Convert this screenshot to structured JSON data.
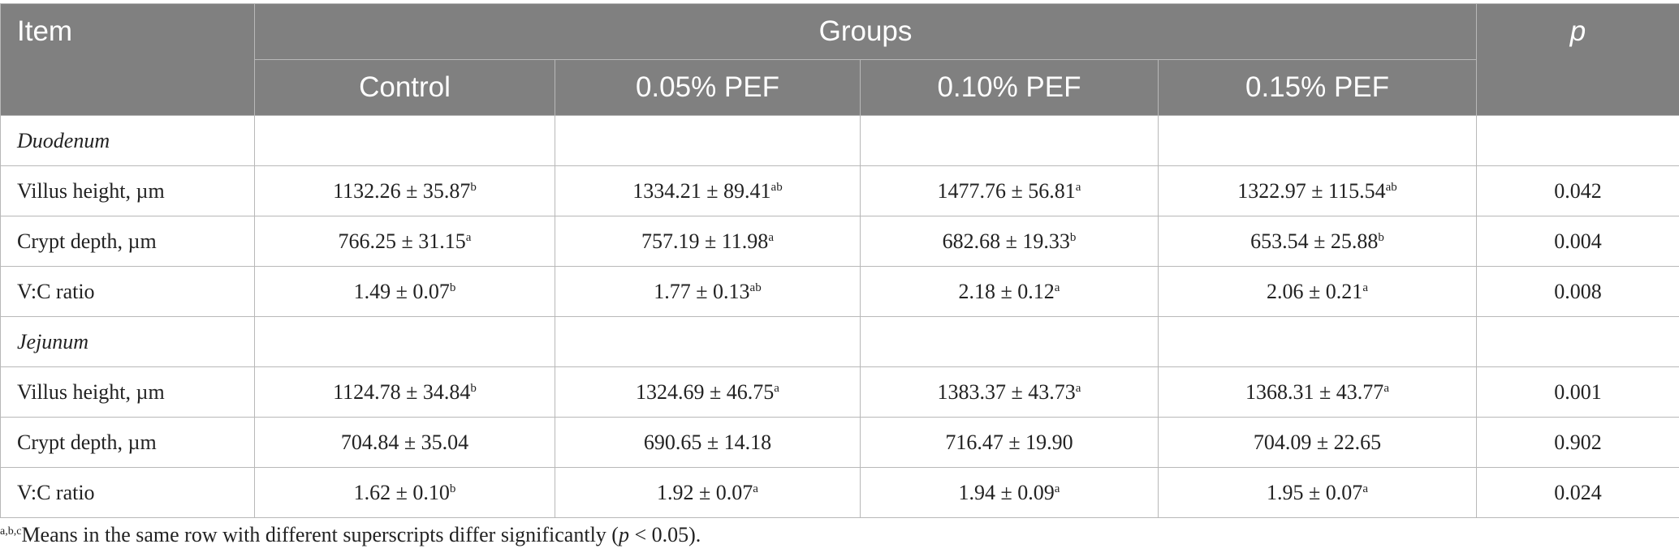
{
  "header": {
    "item": "Item",
    "groups": "Groups",
    "p": "p",
    "columns": [
      "Control",
      "0.05% PEF",
      "0.10% PEF",
      "0.15% PEF"
    ]
  },
  "sections": [
    {
      "label": "Duodenum",
      "rows": [
        {
          "item": "Villus height, µm",
          "cells": [
            {
              "text": "1132.26 ± 35.87",
              "sup": "b"
            },
            {
              "text": "1334.21 ± 89.41",
              "sup": "ab"
            },
            {
              "text": "1477.76 ± 56.81",
              "sup": "a"
            },
            {
              "text": "1322.97 ± 115.54",
              "sup": "ab"
            }
          ],
          "p": "0.042"
        },
        {
          "item": "Crypt depth, µm",
          "cells": [
            {
              "text": "766.25 ± 31.15",
              "sup": "a"
            },
            {
              "text": "757.19 ± 11.98",
              "sup": "a"
            },
            {
              "text": "682.68 ± 19.33",
              "sup": "b"
            },
            {
              "text": "653.54 ± 25.88",
              "sup": "b"
            }
          ],
          "p": "0.004"
        },
        {
          "item": "V:C ratio",
          "cells": [
            {
              "text": "1.49 ± 0.07",
              "sup": "b"
            },
            {
              "text": "1.77 ± 0.13",
              "sup": "ab"
            },
            {
              "text": "2.18 ± 0.12",
              "sup": "a"
            },
            {
              "text": "2.06 ± 0.21",
              "sup": "a"
            }
          ],
          "p": "0.008"
        }
      ]
    },
    {
      "label": "Jejunum",
      "rows": [
        {
          "item": "Villus height, µm",
          "cells": [
            {
              "text": "1124.78 ± 34.84",
              "sup": "b"
            },
            {
              "text": "1324.69 ± 46.75",
              "sup": "a"
            },
            {
              "text": "1383.37 ± 43.73",
              "sup": "a"
            },
            {
              "text": "1368.31 ± 43.77",
              "sup": "a"
            }
          ],
          "p": "0.001"
        },
        {
          "item": "Crypt depth, µm",
          "cells": [
            {
              "text": "704.84 ± 35.04"
            },
            {
              "text": "690.65 ± 14.18"
            },
            {
              "text": "716.47 ± 19.90"
            },
            {
              "text": "704.09 ± 22.65"
            }
          ],
          "p": "0.902"
        },
        {
          "item": "V:C ratio",
          "cells": [
            {
              "text": "1.62 ± 0.10",
              "sup": "b"
            },
            {
              "text": "1.92 ± 0.07",
              "sup": "a"
            },
            {
              "text": "1.94 ± 0.09",
              "sup": "a"
            },
            {
              "text": "1.95 ± 0.07",
              "sup": "a"
            }
          ],
          "p": "0.024"
        }
      ]
    }
  ],
  "footnote": {
    "sup": "a,b,c",
    "text": "Means in the same row with different superscripts differ significantly (",
    "p": "p",
    "tail": " < 0.05)."
  }
}
